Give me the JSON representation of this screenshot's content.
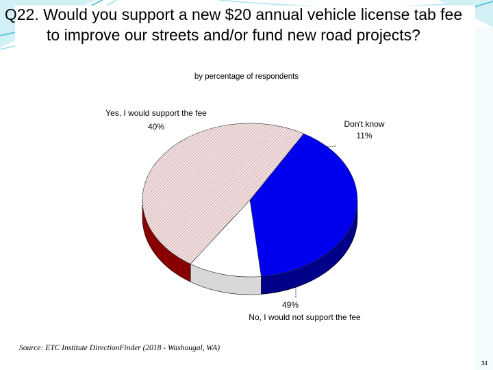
{
  "slide": {
    "title": "Q22. Would you support a new $20 annual vehicle license tab fee to improve our streets and/or fund new road projects?",
    "subtitle": "by percentage of respondents",
    "source": "Source:  ETC Institute DirectionFinder (2018 - Washougal, WA)",
    "page_number": "34"
  },
  "colors": {
    "yes": "#0000ee",
    "yes_side": "#000088",
    "dont_know": "#ffffff",
    "no": "#f4e8e8",
    "no_hatch": "#b07070",
    "no_side": "#880000",
    "decor": "#5ec6dc"
  },
  "chart_data": {
    "type": "pie",
    "title": "Q22. Would you support a new $20 annual vehicle license tab fee to improve our streets and/or fund new road projects?",
    "subtitle": "by percentage of respondents",
    "slices": [
      {
        "label": "Yes, I would support the fee",
        "value": 40,
        "value_label": "40%",
        "color": "#0000ee"
      },
      {
        "label": "Don't know",
        "value": 11,
        "value_label": "11%",
        "color": "#ffffff"
      },
      {
        "label": "No, I would not support the fee",
        "value": 49,
        "value_label": "49%",
        "color": "#f4e8e8"
      }
    ],
    "style": "3d",
    "legend": "none",
    "grid": false
  }
}
